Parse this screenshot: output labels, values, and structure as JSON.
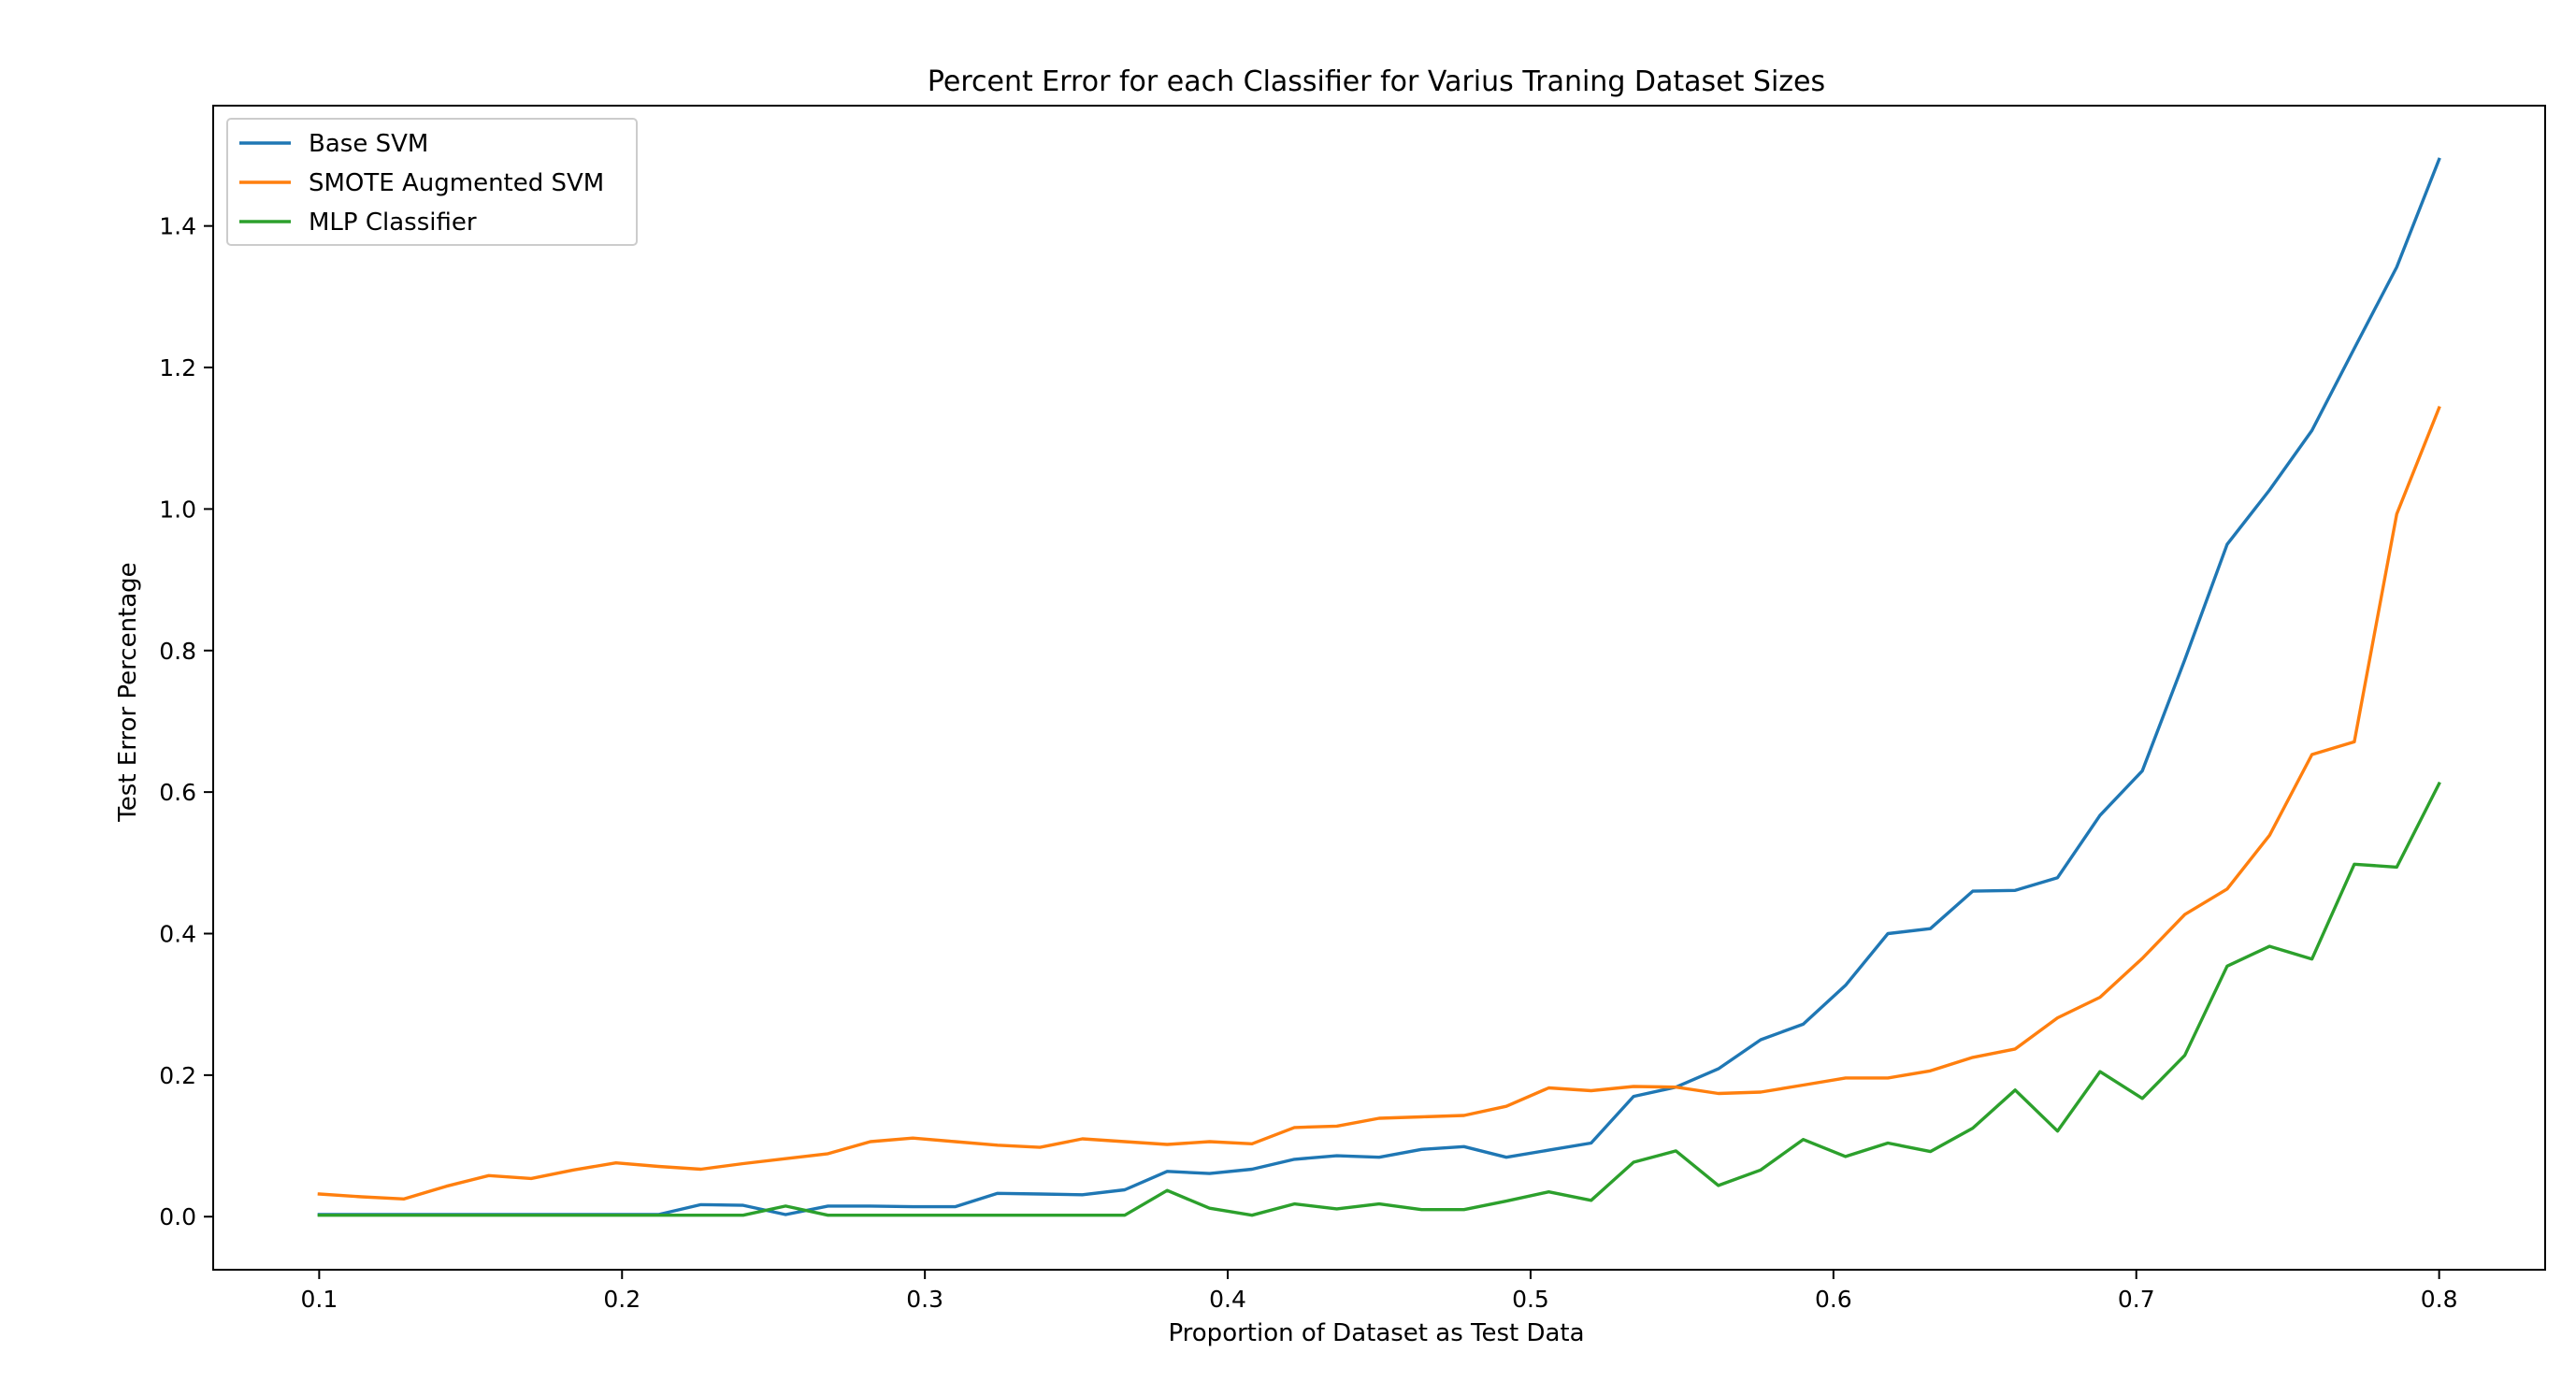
{
  "chart_data": {
    "type": "line",
    "title": "Percent Error for each Classifier for Varius Traning Dataset Sizes",
    "xlabel": "Proportion of Dataset as Test Data",
    "ylabel": "Test Error Percentage",
    "xlim": [
      0.065,
      0.835
    ],
    "ylim": [
      -0.075,
      1.57
    ],
    "xticks": [
      0.1,
      0.2,
      0.3,
      0.4,
      0.5,
      0.6,
      0.7,
      0.8
    ],
    "xtick_labels": [
      "0.1",
      "0.2",
      "0.3",
      "0.4",
      "0.5",
      "0.6",
      "0.7",
      "0.8"
    ],
    "yticks": [
      0.0,
      0.2,
      0.4,
      0.6,
      0.8,
      1.0,
      1.2,
      1.4
    ],
    "ytick_labels": [
      "0.0",
      "0.2",
      "0.4",
      "0.6",
      "0.8",
      "1.0",
      "1.2",
      "1.4"
    ],
    "grid": false,
    "legend_position": "top-left",
    "x": [
      0.1,
      0.114,
      0.128,
      0.142,
      0.156,
      0.17,
      0.184,
      0.198,
      0.212,
      0.226,
      0.24,
      0.254,
      0.268,
      0.282,
      0.296,
      0.31,
      0.324,
      0.338,
      0.352,
      0.366,
      0.38,
      0.394,
      0.408,
      0.422,
      0.436,
      0.45,
      0.464,
      0.478,
      0.492,
      0.506,
      0.52,
      0.534,
      0.548,
      0.562,
      0.576,
      0.59,
      0.604,
      0.618,
      0.632,
      0.646,
      0.66,
      0.674,
      0.688,
      0.702,
      0.716,
      0.73,
      0.744,
      0.758,
      0.772,
      0.786,
      0.8
    ],
    "series": [
      {
        "name": "Base SVM",
        "color": "#1f77b4",
        "values": [
          0.003,
          0.003,
          0.003,
          0.003,
          0.003,
          0.003,
          0.003,
          0.003,
          0.003,
          0.017,
          0.016,
          0.003,
          0.015,
          0.015,
          0.014,
          0.014,
          0.033,
          0.032,
          0.031,
          0.038,
          0.064,
          0.061,
          0.067,
          0.081,
          0.086,
          0.084,
          0.095,
          0.099,
          0.084,
          0.094,
          0.104,
          0.17,
          0.183,
          0.209,
          0.25,
          0.272,
          0.327,
          0.4,
          0.407,
          0.46,
          0.461,
          0.479,
          0.567,
          0.63,
          0.787,
          0.95,
          1.027,
          1.111,
          1.227,
          1.342,
          1.494
        ]
      },
      {
        "name": "SMOTE Augmented SVM",
        "color": "#ff7f0e",
        "values": [
          0.032,
          0.028,
          0.025,
          0.043,
          0.058,
          0.054,
          0.066,
          0.076,
          0.071,
          0.067,
          0.075,
          0.082,
          0.089,
          0.106,
          0.111,
          0.106,
          0.101,
          0.098,
          0.11,
          0.106,
          0.102,
          0.106,
          0.103,
          0.126,
          0.128,
          0.139,
          0.141,
          0.143,
          0.156,
          0.182,
          0.178,
          0.184,
          0.183,
          0.174,
          0.176,
          0.186,
          0.196,
          0.196,
          0.206,
          0.225,
          0.237,
          0.281,
          0.31,
          0.365,
          0.427,
          0.463,
          0.539,
          0.653,
          0.671,
          0.993,
          1.143
        ]
      },
      {
        "name": "MLP Classifier",
        "color": "#2ca02c",
        "values": [
          0.002,
          0.002,
          0.002,
          0.002,
          0.002,
          0.002,
          0.002,
          0.002,
          0.002,
          0.002,
          0.002,
          0.015,
          0.002,
          0.002,
          0.002,
          0.002,
          0.002,
          0.002,
          0.002,
          0.002,
          0.037,
          0.012,
          0.002,
          0.018,
          0.011,
          0.018,
          0.01,
          0.01,
          0.022,
          0.035,
          0.023,
          0.077,
          0.093,
          0.044,
          0.066,
          0.109,
          0.085,
          0.104,
          0.092,
          0.125,
          0.179,
          0.121,
          0.205,
          0.167,
          0.228,
          0.354,
          0.382,
          0.364,
          0.498,
          0.494,
          0.612
        ]
      }
    ]
  }
}
